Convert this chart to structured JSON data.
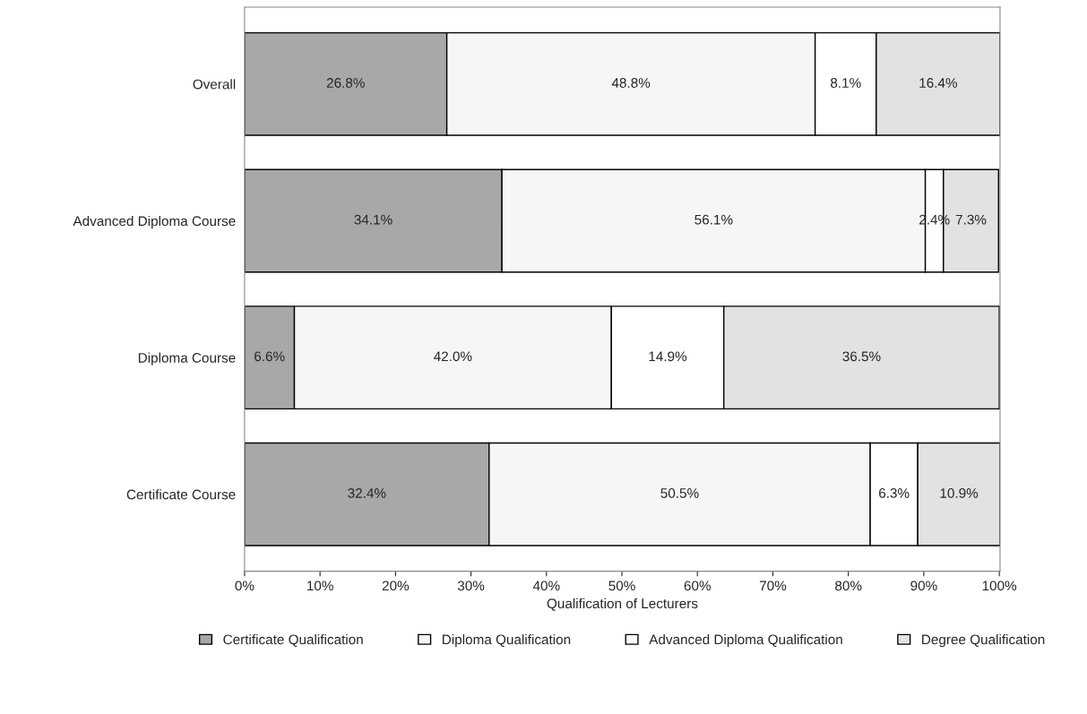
{
  "chart_data": {
    "type": "bar",
    "orientation": "horizontal",
    "stacked": true,
    "categories": [
      "Overall",
      "Advanced Diploma Course",
      "Diploma Course",
      "Certificate Course"
    ],
    "series": [
      {
        "name": "Certificate Qualification",
        "color": "#a8a8a8",
        "values": [
          26.8,
          34.1,
          6.6,
          32.4
        ],
        "value_labels": [
          "26.8%",
          "34.1%",
          "6.6%",
          "32.4%"
        ]
      },
      {
        "name": "Diploma Qualification",
        "color": "#f6f6f6",
        "values": [
          48.8,
          56.1,
          42.0,
          50.5
        ],
        "value_labels": [
          "48.8%",
          "56.1%",
          "42.0%",
          "50.5%"
        ]
      },
      {
        "name": "Advanced Diploma Qualification",
        "color": "#ffffff",
        "values": [
          8.1,
          2.4,
          14.9,
          6.3
        ],
        "value_labels": [
          "8.1%",
          "2.4%",
          "14.9%",
          "6.3%"
        ]
      },
      {
        "name": "Degree Qualification",
        "color": "#e2e2e2",
        "values": [
          16.4,
          7.3,
          36.5,
          10.9
        ],
        "value_labels": [
          "16.4%",
          "7.3%",
          "36.5%",
          "10.9%"
        ]
      }
    ],
    "xlim": [
      0,
      100.1
    ],
    "xticks": [
      {
        "value": 0,
        "label": "0%"
      },
      {
        "value": 10,
        "label": "10%"
      },
      {
        "value": 20,
        "label": "20%"
      },
      {
        "value": 30,
        "label": "30%"
      },
      {
        "value": 40,
        "label": "40%"
      },
      {
        "value": 50,
        "label": "50%"
      },
      {
        "value": 60,
        "label": "60%"
      },
      {
        "value": 70,
        "label": "70%"
      },
      {
        "value": 80,
        "label": "80%"
      },
      {
        "value": 90,
        "label": "90%"
      },
      {
        "value": 100,
        "label": "100%"
      }
    ],
    "xlabel": "Qualification of Lecturers",
    "legend": "bottom",
    "grid": false
  }
}
